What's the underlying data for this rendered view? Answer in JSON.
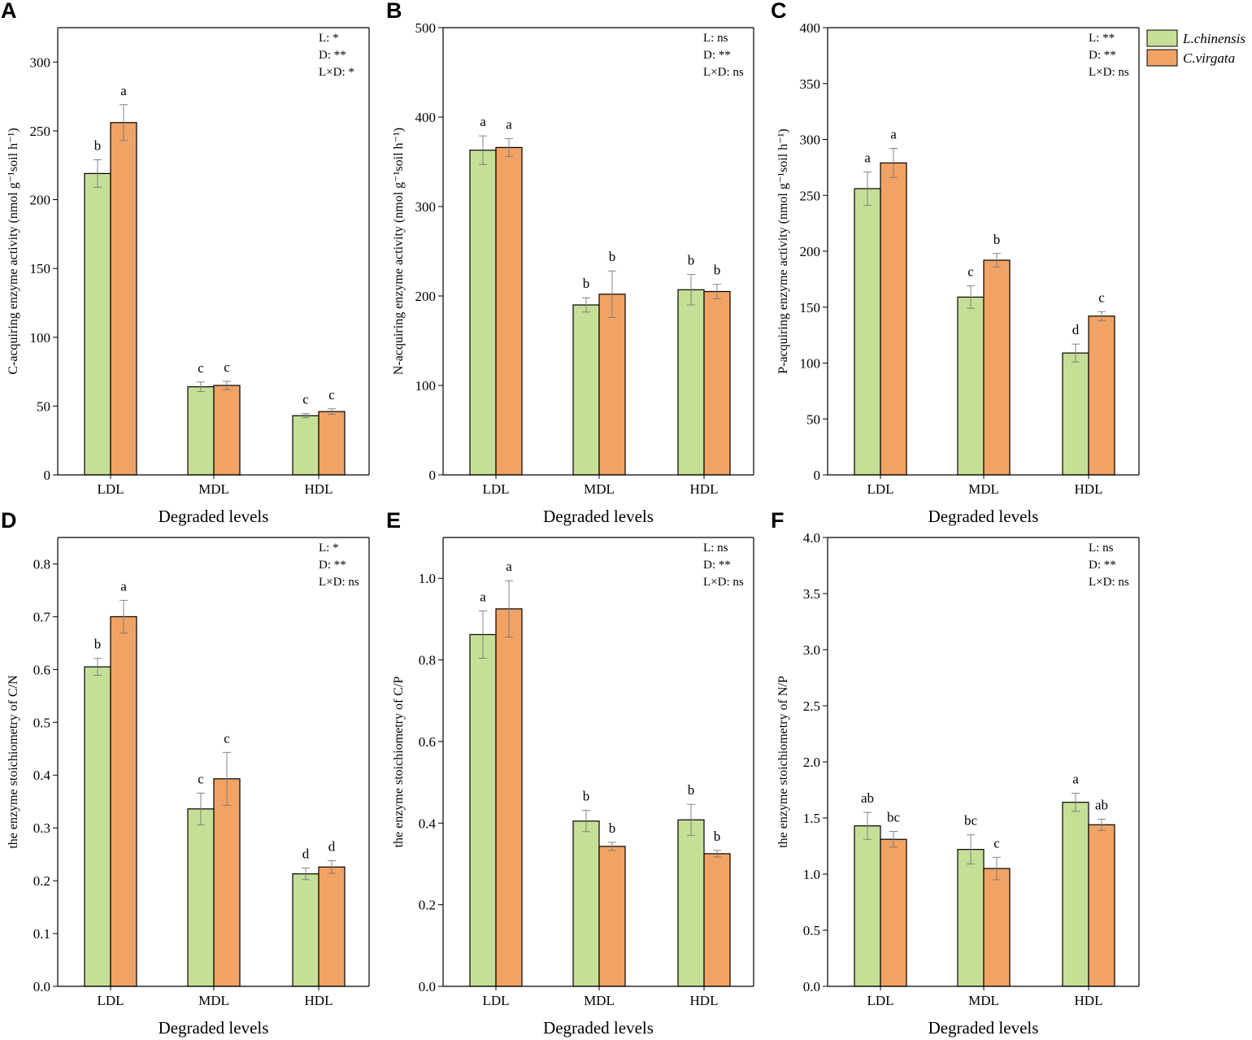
{
  "legend": {
    "series": [
      {
        "name": "L.chinensis",
        "color": "#c6df96"
      },
      {
        "name": "C.virgata",
        "color": "#f0a365"
      }
    ]
  },
  "chart_data": [
    {
      "type": "bar",
      "panel": "A",
      "categories": [
        "LDL",
        "MDL",
        "HDL"
      ],
      "series": [
        {
          "name": "L.chinensis",
          "values": [
            219,
            64,
            43
          ],
          "errors": [
            10,
            3.5,
            1.5
          ],
          "letters": [
            "b",
            "c",
            "c"
          ]
        },
        {
          "name": "C.virgata",
          "values": [
            256,
            65,
            46
          ],
          "errors": [
            13,
            3,
            2
          ],
          "letters": [
            "a",
            "c",
            "c"
          ]
        }
      ],
      "ylim": [
        0,
        325
      ],
      "yticks": [
        0,
        50,
        100,
        150,
        200,
        250,
        300
      ],
      "xlabel": "Degraded levels",
      "ylabel": "C-acquiring enzyme activity (nmol g⁻¹soil h⁻¹)",
      "annotations": [
        "L: *",
        "D: **",
        "L×D: *"
      ]
    },
    {
      "type": "bar",
      "panel": "B",
      "categories": [
        "LDL",
        "MDL",
        "HDL"
      ],
      "series": [
        {
          "name": "L.chinensis",
          "values": [
            363,
            190,
            207
          ],
          "errors": [
            16,
            8,
            17
          ],
          "letters": [
            "a",
            "b",
            "b"
          ]
        },
        {
          "name": "C.virgata",
          "values": [
            366,
            202,
            205
          ],
          "errors": [
            10,
            26,
            8
          ],
          "letters": [
            "a",
            "b",
            "b"
          ]
        }
      ],
      "ylim": [
        0,
        500
      ],
      "yticks": [
        0,
        100,
        200,
        300,
        400,
        500
      ],
      "xlabel": "Degraded levels",
      "ylabel": "N-acquiring enzyme activity (nmol g⁻¹soil h⁻¹)",
      "annotations": [
        "L: ns",
        "D: **",
        "L×D: ns"
      ]
    },
    {
      "type": "bar",
      "panel": "C",
      "categories": [
        "LDL",
        "MDL",
        "HDL"
      ],
      "series": [
        {
          "name": "L.chinensis",
          "values": [
            256,
            159,
            109
          ],
          "errors": [
            15,
            10,
            8
          ],
          "letters": [
            "a",
            "c",
            "d"
          ]
        },
        {
          "name": "C.virgata",
          "values": [
            279,
            192,
            142
          ],
          "errors": [
            13,
            6,
            4
          ],
          "letters": [
            "a",
            "b",
            "c"
          ]
        }
      ],
      "ylim": [
        0,
        400
      ],
      "yticks": [
        0,
        50,
        100,
        150,
        200,
        250,
        300,
        350,
        400
      ],
      "xlabel": "Degraded levels",
      "ylabel": "P-acquiring enzyme activity (nmol g⁻¹soil h⁻¹)",
      "annotations": [
        "L: **",
        "D: **",
        "L×D: ns"
      ]
    },
    {
      "type": "bar",
      "panel": "D",
      "categories": [
        "LDL",
        "MDL",
        "HDL"
      ],
      "series": [
        {
          "name": "L.chinensis",
          "values": [
            0.605,
            0.336,
            0.213
          ],
          "errors": [
            0.016,
            0.03,
            0.011
          ],
          "letters": [
            "b",
            "c",
            "d"
          ]
        },
        {
          "name": "C.virgata",
          "values": [
            0.7,
            0.393,
            0.226
          ],
          "errors": [
            0.031,
            0.05,
            0.012
          ],
          "letters": [
            "a",
            "c",
            "d"
          ]
        }
      ],
      "ylim": [
        0,
        0.85
      ],
      "yticks": [
        0.0,
        0.1,
        0.2,
        0.3,
        0.4,
        0.5,
        0.6,
        0.7,
        0.8
      ],
      "ytick_labels": [
        "0.0",
        "0.1",
        "0.2",
        "0.3",
        "0.4",
        "0.5",
        "0.6",
        "0.7",
        "0.8"
      ],
      "xlabel": "Degraded levels",
      "ylabel": "the enzyme stoichiometry of C/N",
      "annotations": [
        "L: *",
        "D: **",
        "L×D: ns"
      ]
    },
    {
      "type": "bar",
      "panel": "E",
      "categories": [
        "LDL",
        "MDL",
        "HDL"
      ],
      "series": [
        {
          "name": "L.chinensis",
          "values": [
            0.862,
            0.405,
            0.408
          ],
          "errors": [
            0.058,
            0.026,
            0.038
          ],
          "letters": [
            "a",
            "b",
            "b"
          ]
        },
        {
          "name": "C.virgata",
          "values": [
            0.925,
            0.343,
            0.325
          ],
          "errors": [
            0.069,
            0.01,
            0.008
          ],
          "letters": [
            "a",
            "b",
            "b"
          ]
        }
      ],
      "ylim": [
        0,
        1.1
      ],
      "yticks": [
        0.0,
        0.2,
        0.4,
        0.6,
        0.8,
        1.0
      ],
      "ytick_labels": [
        "0.0",
        "0.2",
        "0.4",
        "0.6",
        "0.8",
        "1.0"
      ],
      "xlabel": "Degraded levels",
      "ylabel": "the enzyme stoichiometry of C/P",
      "annotations": [
        "L: ns",
        "D: **",
        "L×D: ns"
      ]
    },
    {
      "type": "bar",
      "panel": "F",
      "categories": [
        "LDL",
        "MDL",
        "HDL"
      ],
      "series": [
        {
          "name": "L.chinensis",
          "values": [
            1.43,
            1.22,
            1.64
          ],
          "errors": [
            0.12,
            0.13,
            0.08
          ],
          "letters": [
            "ab",
            "bc",
            "a"
          ]
        },
        {
          "name": "C.virgata",
          "values": [
            1.31,
            1.05,
            1.44
          ],
          "errors": [
            0.07,
            0.1,
            0.05
          ],
          "letters": [
            "bc",
            "c",
            "ab"
          ]
        }
      ],
      "ylim": [
        0,
        4.0
      ],
      "yticks": [
        0.0,
        0.5,
        1.0,
        1.5,
        2.0,
        2.5,
        3.0,
        3.5,
        4.0
      ],
      "ytick_labels": [
        "0.0",
        "0.5",
        "1.0",
        "1.5",
        "2.0",
        "2.5",
        "3.0",
        "3.5",
        "4.0"
      ],
      "xlabel": "Degraded levels",
      "ylabel": "the enzyme stoichiometry of N/P",
      "annotations": [
        "L: ns",
        "D: **",
        "L×D: ns"
      ]
    }
  ]
}
